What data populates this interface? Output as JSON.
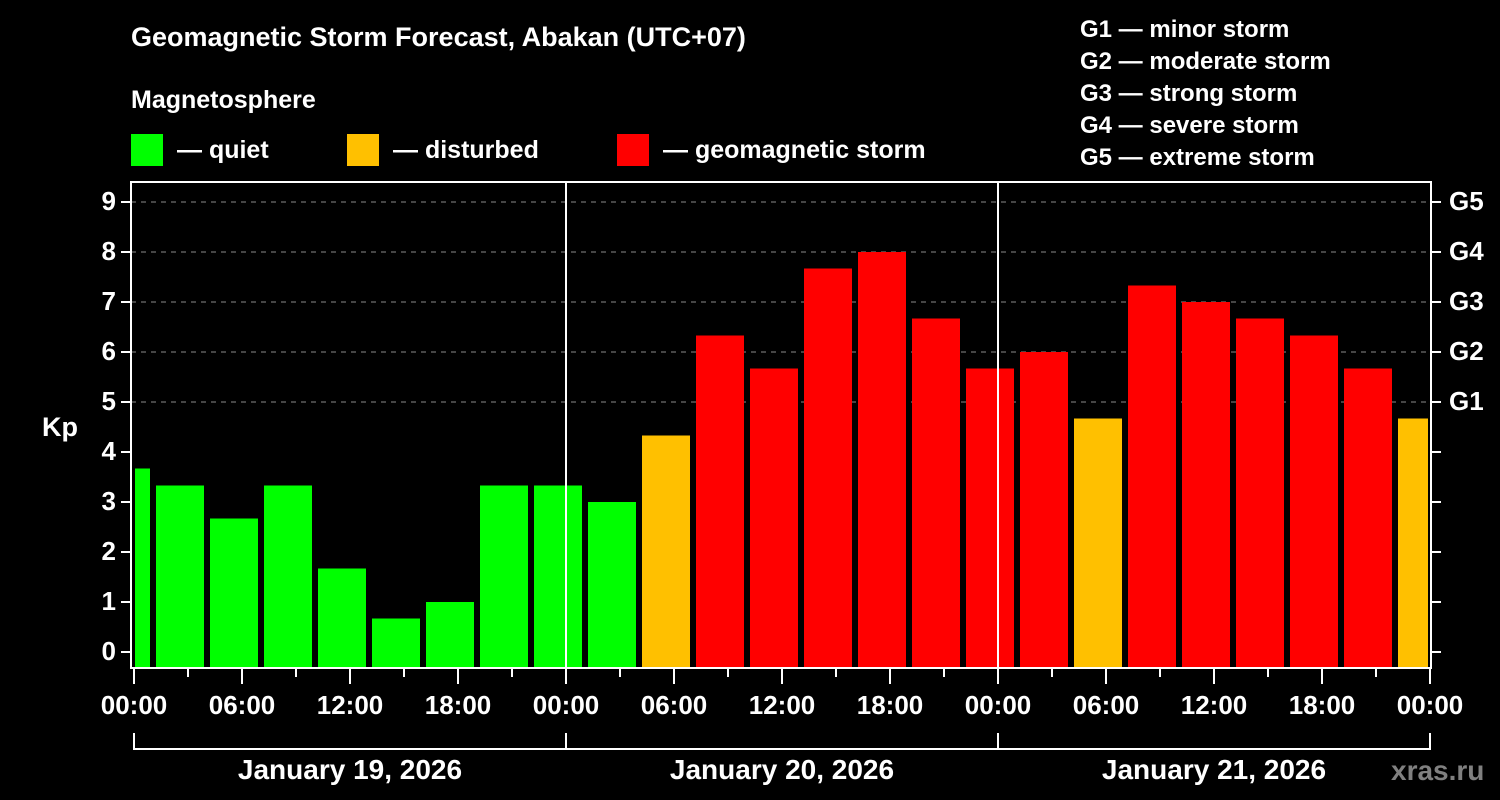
{
  "header": {
    "title": "Geomagnetic Storm Forecast, Abakan (UTC+07)",
    "subtitle": "Magnetosphere"
  },
  "legend": [
    {
      "label": "— quiet",
      "color": "#00FF00"
    },
    {
      "label": "— disturbed",
      "color": "#FFC000"
    },
    {
      "label": "— geomagnetic storm",
      "color": "#FF0000"
    }
  ],
  "g_scale": [
    "G1 — minor storm",
    "G2 — moderate storm",
    "G3 — strong storm",
    "G4 — severe storm",
    "G5 — extreme storm"
  ],
  "axes": {
    "ylabel": "Kp",
    "yticks": [
      "0",
      "1",
      "2",
      "3",
      "4",
      "5",
      "6",
      "7",
      "8",
      "9"
    ],
    "gticks": [
      {
        "label": "G1",
        "kp": 5
      },
      {
        "label": "G2",
        "kp": 6
      },
      {
        "label": "G3",
        "kp": 7
      },
      {
        "label": "G4",
        "kp": 8
      },
      {
        "label": "G5",
        "kp": 9
      }
    ],
    "xticks": [
      "00:00",
      "06:00",
      "12:00",
      "18:00",
      "00:00",
      "06:00",
      "12:00",
      "18:00",
      "00:00",
      "06:00",
      "12:00",
      "18:00",
      "00:00"
    ],
    "dates": [
      "January 19, 2026",
      "January 20, 2026",
      "January 21, 2026"
    ]
  },
  "watermark": "xras.ru",
  "chart_data": {
    "type": "bar",
    "title": "Geomagnetic Storm Forecast, Abakan (UTC+07)",
    "xlabel": "",
    "ylabel": "Kp",
    "ylim": [
      0,
      9
    ],
    "grid": "dashed horizontal at Kp 5-9",
    "categories": [
      "Jan19 00:00",
      "Jan19 03:00",
      "Jan19 06:00",
      "Jan19 09:00",
      "Jan19 12:00",
      "Jan19 15:00",
      "Jan19 18:00",
      "Jan19 21:00",
      "Jan20 00:00",
      "Jan20 03:00",
      "Jan20 06:00",
      "Jan20 09:00",
      "Jan20 12:00",
      "Jan20 15:00",
      "Jan20 18:00",
      "Jan20 21:00",
      "Jan21 00:00",
      "Jan21 03:00",
      "Jan21 06:00",
      "Jan21 09:00",
      "Jan21 12:00",
      "Jan21 15:00",
      "Jan21 18:00",
      "Jan21 21:00",
      "Jan22 00:00"
    ],
    "values": [
      3.67,
      3.33,
      2.67,
      3.33,
      1.67,
      0.67,
      1.0,
      3.33,
      3.33,
      3.0,
      4.33,
      6.33,
      5.67,
      7.67,
      8.0,
      6.67,
      5.67,
      6.0,
      4.67,
      7.33,
      7.0,
      6.67,
      6.33,
      5.67,
      4.67
    ],
    "colors": {
      "quiet": "#00FF00",
      "disturbed": "#FFC000",
      "storm": "#FF0000"
    }
  }
}
